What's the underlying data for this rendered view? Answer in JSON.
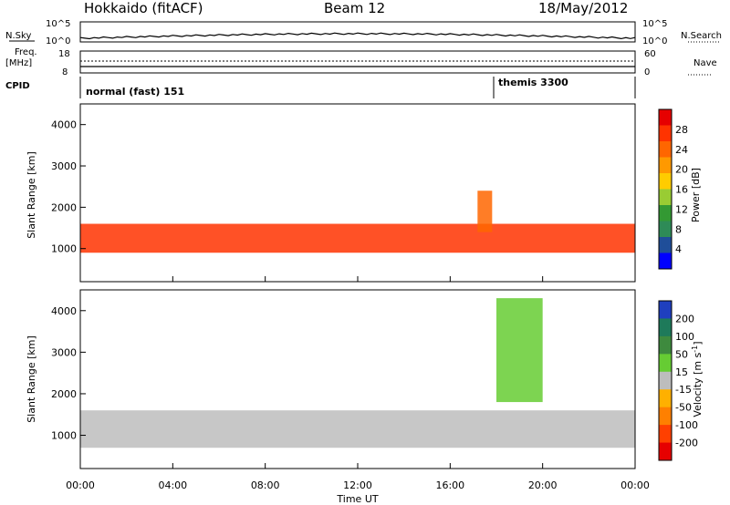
{
  "header": {
    "station": "Hokkaido (fitACF)",
    "beam": "Beam 12",
    "date": "18/May/2012"
  },
  "panels": {
    "nsky_label": "N.Sky",
    "nsearch_label": "N.Search",
    "nsky_ticks": [
      "10^5",
      "10^0"
    ],
    "nsearch_ticks": [
      "10^5",
      "10^0"
    ],
    "freq_label_1": "Freq.",
    "freq_label_2": "[MHz]",
    "freq_ticks": [
      "18",
      "8"
    ],
    "nave_label": "Nave",
    "nave_ticks": [
      "60",
      "0"
    ],
    "cpid_label": "CPID",
    "cpid_segments": [
      "normal (fast) 151",
      "themis 3300"
    ]
  },
  "axes": {
    "xlabel": "Time UT",
    "xticks": [
      "00:00",
      "04:00",
      "08:00",
      "12:00",
      "16:00",
      "20:00",
      "00:00"
    ],
    "ylabel": "Slant Range [km]",
    "yticks": [
      "1000",
      "2000",
      "3000",
      "4000"
    ]
  },
  "colorbars": {
    "power": {
      "label": "Power [dB]",
      "ticks": [
        "28",
        "24",
        "20",
        "16",
        "12",
        "8",
        "4"
      ],
      "colors": [
        "#e60000",
        "#ff3300",
        "#ff6600",
        "#ff9900",
        "#ffcc00",
        "#99cc33",
        "#339933",
        "#2e8b57",
        "#1f4e99",
        "#0000ff"
      ]
    },
    "velocity": {
      "label": "Velocity [m s",
      "label_sup": "-1",
      "label_end": "]",
      "ticks": [
        "200",
        "100",
        "50",
        "15",
        "-15",
        "-50",
        "-100",
        "-200"
      ],
      "colors": [
        "#1f3fbf",
        "#1e7a5a",
        "#3e8a3e",
        "#66cc33",
        "#bdbdbd",
        "#ffb000",
        "#ff8000",
        "#ff4000",
        "#e60000"
      ]
    }
  },
  "chart_data": [
    {
      "type": "heatmap",
      "title": "Power",
      "xlabel": "Time UT",
      "ylabel": "Slant Range [km]",
      "xlim": [
        0,
        24
      ],
      "ylim": [
        200,
        4500
      ],
      "color_scale": "Power [dB]",
      "color_range": [
        0,
        30
      ],
      "features": [
        {
          "feature": "main band",
          "time_start_h": 0,
          "time_end_h": 24,
          "range_km": [
            900,
            1600
          ],
          "power_db": 28
        },
        {
          "feature": "rising echo near 17:30 UT",
          "time_h": 17.5,
          "range_km": [
            1400,
            2400
          ],
          "power_db": 26
        }
      ]
    },
    {
      "type": "heatmap",
      "title": "Velocity",
      "xlabel": "Time UT",
      "ylabel": "Slant Range [km]",
      "xlim": [
        0,
        24
      ],
      "ylim": [
        200,
        4500
      ],
      "color_scale": "Velocity [m s^-1]",
      "color_range": [
        -200,
        200
      ],
      "features": [
        {
          "feature": "ground scatter band",
          "time_start_h": 0,
          "time_end_h": 24,
          "range_km": [
            700,
            1600
          ],
          "velocity_ms": 0
        },
        {
          "feature": "positive velocity patch after 18 UT",
          "time_start_h": 18,
          "time_end_h": 20,
          "range_km": [
            1800,
            4300
          ],
          "velocity_ms": 30
        }
      ]
    }
  ]
}
